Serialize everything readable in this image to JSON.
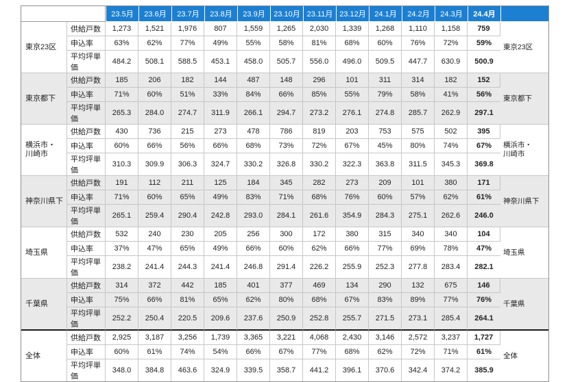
{
  "colors": {
    "header_bg": "#1c7fd2",
    "header_text": "#ffffff",
    "shaded_group_bg": "#e9e9e9",
    "grid_line": "#c6c6c6",
    "outer_border": "#8f8f8f",
    "total_divider": "#1a1a1a",
    "data_text": "#222222"
  },
  "chart_data": {
    "type": "table",
    "months": [
      "23.5月",
      "23.6月",
      "23.7月",
      "23.8月",
      "23.9月",
      "23.10月",
      "23.11月",
      "23.12月",
      "24.1月",
      "24.2月",
      "24.3月",
      "24.4月"
    ],
    "metric_labels": [
      "供給戸数",
      "申込率",
      "平均坪単価"
    ],
    "groups": [
      {
        "region": "東京23区",
        "metrics": [
          [
            "1,273",
            "1,521",
            "1,976",
            "807",
            "1,559",
            "1,265",
            "2,030",
            "1,339",
            "1,268",
            "1,110",
            "1,158",
            "759"
          ],
          [
            "63%",
            "62%",
            "77%",
            "49%",
            "55%",
            "58%",
            "81%",
            "68%",
            "60%",
            "76%",
            "72%",
            "59%"
          ],
          [
            "484.2",
            "508.1",
            "588.5",
            "453.1",
            "458.0",
            "505.7",
            "556.0",
            "496.0",
            "509.5",
            "447.7",
            "630.9",
            "500.9"
          ]
        ]
      },
      {
        "region": "東京都下",
        "metrics": [
          [
            "185",
            "206",
            "182",
            "144",
            "487",
            "148",
            "296",
            "101",
            "311",
            "314",
            "182",
            "152"
          ],
          [
            "71%",
            "60%",
            "51%",
            "33%",
            "84%",
            "66%",
            "85%",
            "55%",
            "79%",
            "58%",
            "41%",
            "56%"
          ],
          [
            "265.3",
            "284.0",
            "274.7",
            "311.9",
            "266.1",
            "294.7",
            "273.2",
            "276.1",
            "274.8",
            "285.7",
            "262.9",
            "297.1"
          ]
        ]
      },
      {
        "region": "横浜市・\n川崎市",
        "metrics": [
          [
            "430",
            "736",
            "215",
            "273",
            "478",
            "786",
            "819",
            "203",
            "753",
            "575",
            "502",
            "395"
          ],
          [
            "60%",
            "66%",
            "56%",
            "66%",
            "68%",
            "73%",
            "72%",
            "67%",
            "45%",
            "80%",
            "74%",
            "67%"
          ],
          [
            "310.3",
            "309.9",
            "306.3",
            "324.7",
            "330.2",
            "326.8",
            "330.2",
            "322.3",
            "363.8",
            "311.5",
            "345.3",
            "369.8"
          ]
        ]
      },
      {
        "region": "神奈川県下",
        "metrics": [
          [
            "191",
            "112",
            "211",
            "125",
            "184",
            "345",
            "282",
            "273",
            "209",
            "101",
            "380",
            "171"
          ],
          [
            "71%",
            "60%",
            "65%",
            "49%",
            "83%",
            "71%",
            "68%",
            "76%",
            "60%",
            "57%",
            "62%",
            "61%"
          ],
          [
            "265.1",
            "259.4",
            "290.4",
            "242.8",
            "293.0",
            "284.1",
            "261.6",
            "354.9",
            "284.3",
            "275.1",
            "262.6",
            "246.0"
          ]
        ]
      },
      {
        "region": "埼玉県",
        "metrics": [
          [
            "532",
            "240",
            "230",
            "205",
            "256",
            "300",
            "172",
            "380",
            "315",
            "340",
            "340",
            "104"
          ],
          [
            "37%",
            "47%",
            "65%",
            "49%",
            "66%",
            "60%",
            "62%",
            "66%",
            "77%",
            "69%",
            "78%",
            "47%"
          ],
          [
            "238.2",
            "241.4",
            "244.3",
            "241.4",
            "246.8",
            "291.4",
            "226.2",
            "255.9",
            "252.3",
            "277.8",
            "283.4",
            "282.1"
          ]
        ]
      },
      {
        "region": "千葉県",
        "metrics": [
          [
            "314",
            "372",
            "442",
            "185",
            "401",
            "377",
            "469",
            "134",
            "290",
            "132",
            "675",
            "146"
          ],
          [
            "75%",
            "66%",
            "81%",
            "65%",
            "62%",
            "80%",
            "68%",
            "67%",
            "83%",
            "89%",
            "77%",
            "76%"
          ],
          [
            "252.2",
            "250.4",
            "220.5",
            "209.6",
            "237.6",
            "250.9",
            "252.8",
            "255.7",
            "271.5",
            "273.1",
            "285.4",
            "264.1"
          ]
        ]
      },
      {
        "region": "全体",
        "metrics": [
          [
            "2,925",
            "3,187",
            "3,256",
            "1,739",
            "3,365",
            "3,221",
            "4,068",
            "2,430",
            "3,146",
            "2,572",
            "3,237",
            "1,727"
          ],
          [
            "60%",
            "61%",
            "74%",
            "54%",
            "66%",
            "67%",
            "77%",
            "68%",
            "62%",
            "72%",
            "71%",
            "61%"
          ],
          [
            "348.0",
            "384.8",
            "463.6",
            "324.9",
            "339.5",
            "358.7",
            "441.2",
            "396.1",
            "370.6",
            "342.4",
            "374.2",
            "385.9"
          ]
        ]
      }
    ]
  }
}
